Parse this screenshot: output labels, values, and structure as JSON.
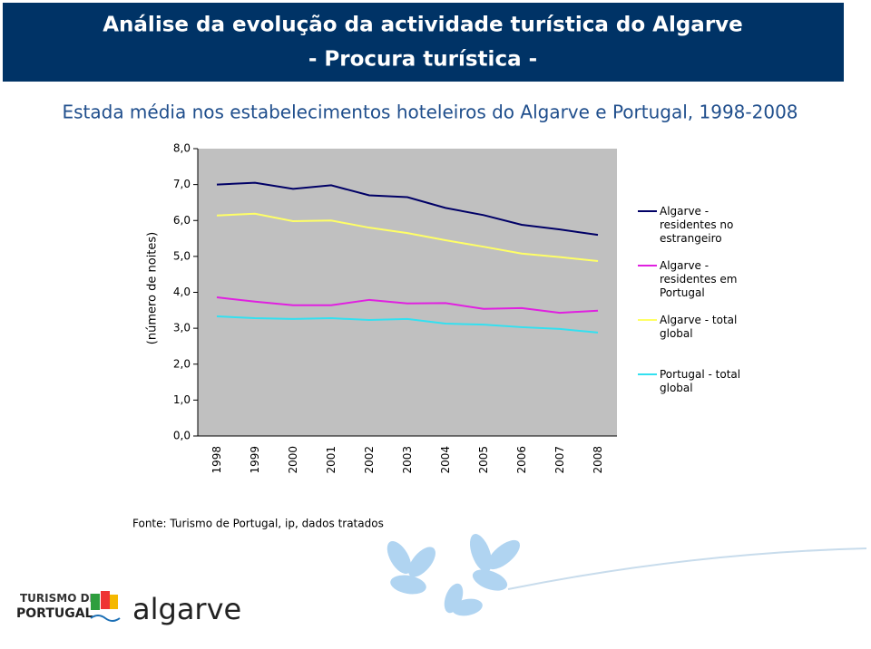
{
  "chart_data": {
    "type": "line",
    "header_title": "Análise da evolução da actividade turística do Algarve",
    "header_subtitle": "- Procura turística -",
    "title": "Estada média nos estabelecimentos hoteleiros do Algarve e Portugal, 1998-2008",
    "y_label": "(número de noites)",
    "categories": [
      "1998",
      "1999",
      "2000",
      "2001",
      "2002",
      "2003",
      "2004",
      "2005",
      "2006",
      "2007",
      "2008"
    ],
    "series": [
      {
        "name": "Algarve - residentes no estrangeiro",
        "color": "#000066",
        "values": [
          7.0,
          7.05,
          6.88,
          6.98,
          6.7,
          6.65,
          6.35,
          6.15,
          5.88,
          5.75,
          5.6
        ]
      },
      {
        "name": "Algarve - residentes em Portugal",
        "color": "#e020e0",
        "values": [
          3.86,
          3.74,
          3.64,
          3.64,
          3.79,
          3.69,
          3.7,
          3.54,
          3.56,
          3.43,
          3.49
        ]
      },
      {
        "name": "Algarve - total global",
        "color": "#ffff66",
        "values": [
          6.14,
          6.19,
          5.98,
          6.0,
          5.8,
          5.65,
          5.45,
          5.27,
          5.08,
          4.98,
          4.87
        ]
      },
      {
        "name": "Portugal - total global",
        "color": "#33e0f0",
        "values": [
          3.33,
          3.28,
          3.26,
          3.28,
          3.23,
          3.26,
          3.13,
          3.1,
          3.03,
          2.98,
          2.88
        ]
      }
    ],
    "ylim": [
      0,
      8
    ],
    "yticks": [
      {
        "value": 0,
        "label": "0,0"
      },
      {
        "value": 1,
        "label": "1,0"
      },
      {
        "value": 2,
        "label": "2,0"
      },
      {
        "value": 3,
        "label": "3,0"
      },
      {
        "value": 4,
        "label": "4,0"
      },
      {
        "value": 5,
        "label": "5,0"
      },
      {
        "value": 6,
        "label": "6,0"
      },
      {
        "value": 7,
        "label": "7,0"
      },
      {
        "value": 8,
        "label": "8,0"
      }
    ],
    "grid": false,
    "legend": "right",
    "source": "Fonte: Turismo de Portugal, ip, dados tratados"
  },
  "logo": {
    "line1": "TURISMO DE",
    "line2": "PORTUGAL",
    "brand": "algarve"
  }
}
